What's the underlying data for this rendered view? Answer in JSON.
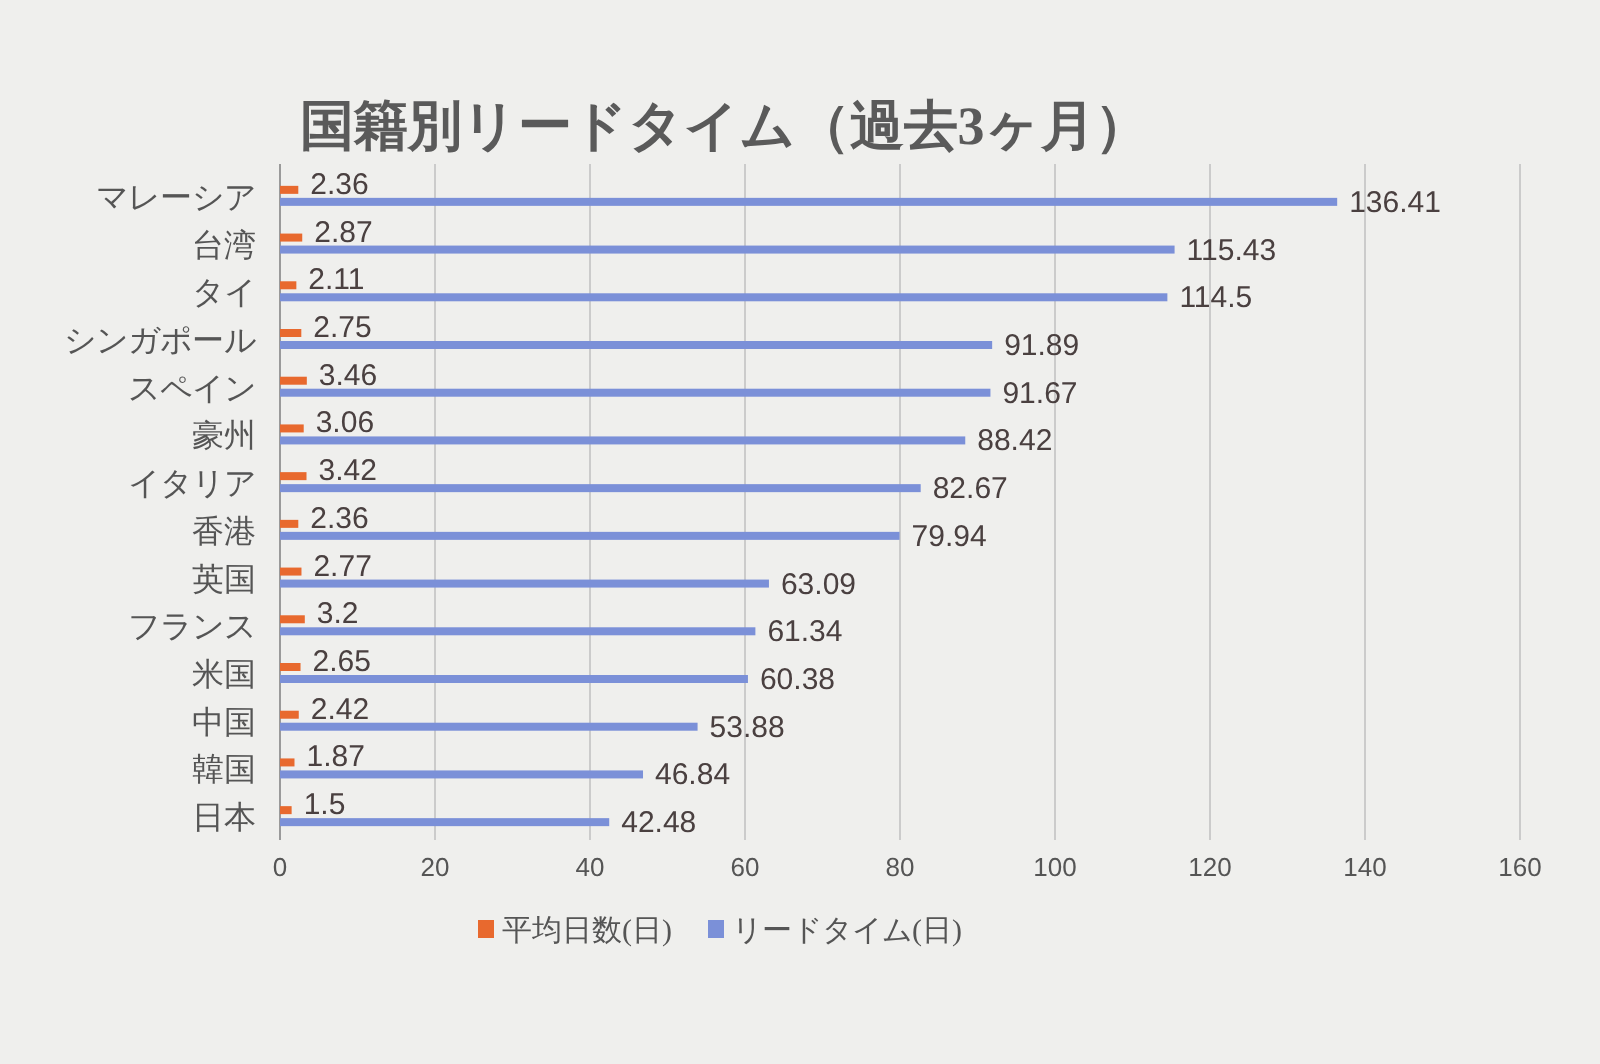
{
  "chart_data": {
    "type": "bar",
    "orientation": "horizontal",
    "title": "国籍別リードタイム（過去3ヶ月）",
    "categories": [
      "マレーシア",
      "台湾",
      "タイ",
      "シンガポール",
      "スペイン",
      "豪州",
      "イタリア",
      "香港",
      "英国",
      "フランス",
      "米国",
      "中国",
      "韓国",
      "日本"
    ],
    "series": [
      {
        "name": "平均日数(日)",
        "color": "#e8692e",
        "values": [
          2.36,
          2.87,
          2.11,
          2.75,
          3.46,
          3.06,
          3.42,
          2.36,
          2.77,
          3.2,
          2.65,
          2.42,
          1.87,
          1.5
        ]
      },
      {
        "name": "リードタイム(日)",
        "color": "#7b90d8",
        "values": [
          136.41,
          115.43,
          114.5,
          91.89,
          91.67,
          88.42,
          82.67,
          79.94,
          63.09,
          61.34,
          60.38,
          53.88,
          46.84,
          42.48
        ]
      }
    ],
    "xlim": [
      0,
      160
    ],
    "xticks": [
      0,
      20,
      40,
      60,
      80,
      100,
      120,
      140,
      160
    ],
    "grid": "x",
    "legend": "bottom",
    "data_labels": true
  }
}
